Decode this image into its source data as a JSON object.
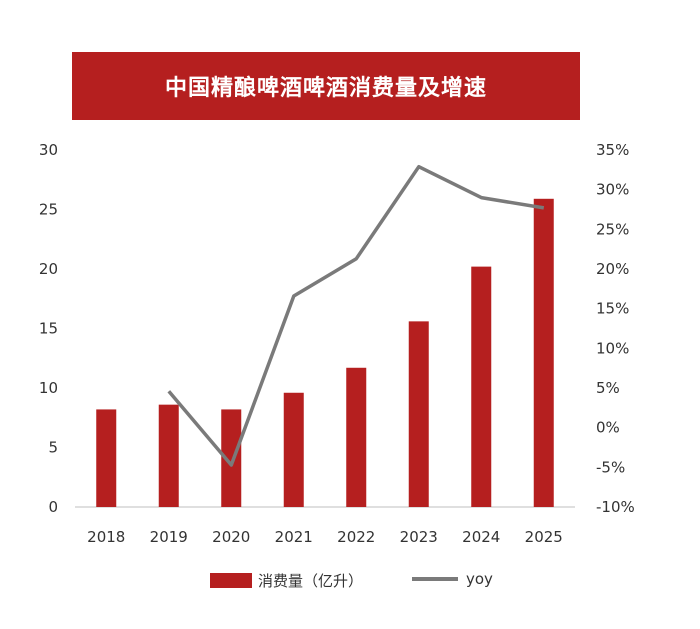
{
  "colors": {
    "bar": "#b51f1f",
    "line": "#7a7a7a",
    "banner": "#b51f1f",
    "axis": "#bfbfbf"
  },
  "chart_data": {
    "type": "bar",
    "title": "中国精酿啤酒啤酒消费量及增速",
    "categories": [
      "2018",
      "2019",
      "2020",
      "2021",
      "2022",
      "2023",
      "2024",
      "2025"
    ],
    "series": [
      {
        "name": "消费量（亿升）",
        "type": "bar",
        "axis": "left",
        "values": [
          8.2,
          8.6,
          8.2,
          9.6,
          11.7,
          15.6,
          20.2,
          25.9
        ]
      },
      {
        "name": "yoy",
        "type": "line",
        "axis": "right",
        "values": [
          null,
          4.6,
          -4.7,
          16.6,
          21.3,
          32.9,
          29.0,
          27.7
        ]
      }
    ],
    "ylim": [
      0,
      30
    ],
    "yticks": [
      "0",
      "5",
      "10",
      "15",
      "20",
      "25",
      "30"
    ],
    "y2lim": [
      -10,
      35
    ],
    "y2ticks": [
      "-10%",
      "-5%",
      "0%",
      "5%",
      "10%",
      "15%",
      "20%",
      "25%",
      "30%",
      "35%"
    ],
    "grid": false,
    "legend_position": "bottom"
  }
}
